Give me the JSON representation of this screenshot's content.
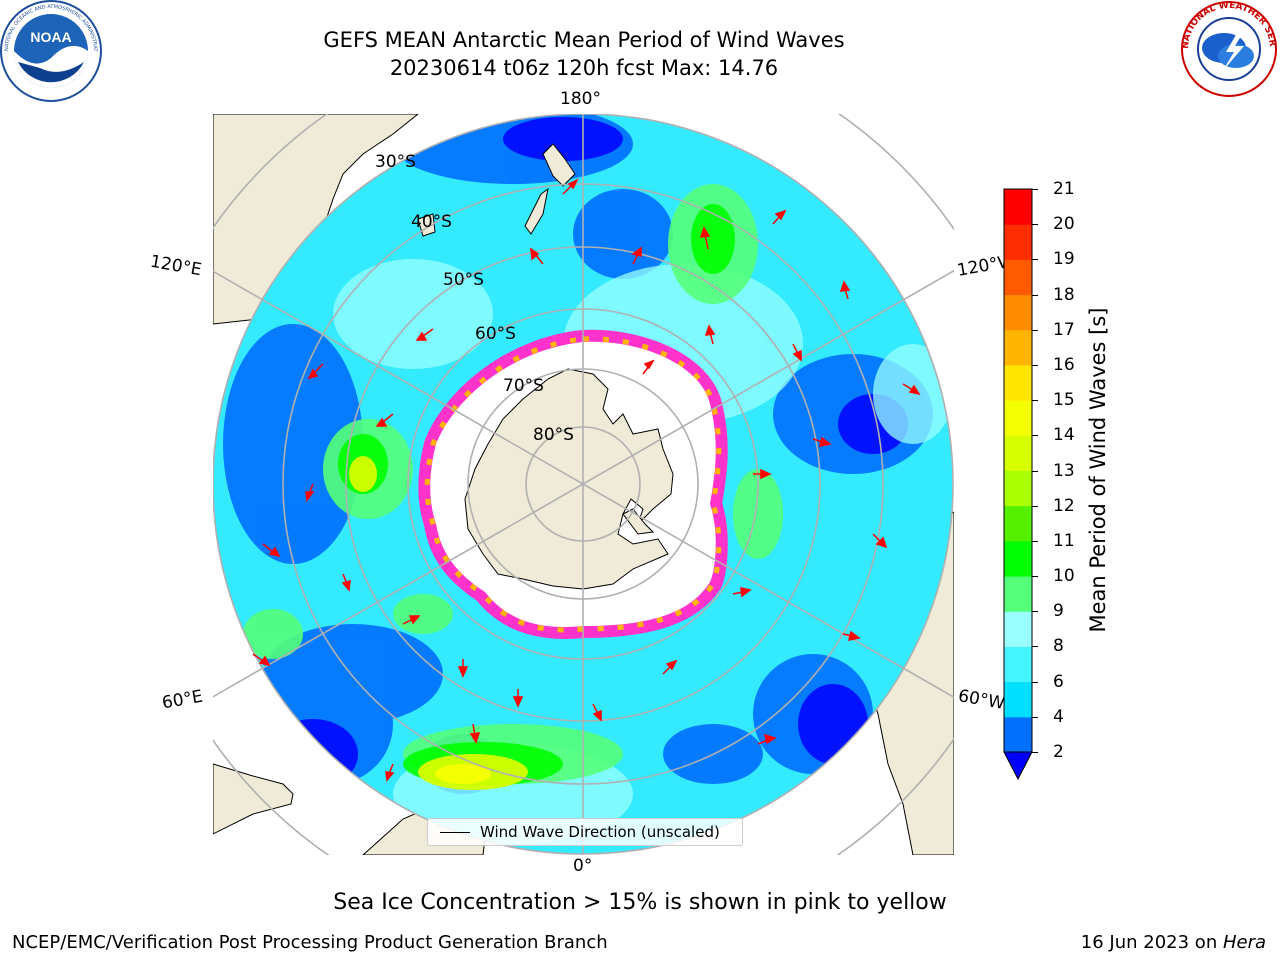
{
  "header": {
    "title_line1": "GEFS MEAN Antarctic Mean Period of Wind Waves",
    "title_line2": "20230614 t06z 120h fcst   Max: 14.76"
  },
  "logos": {
    "left": {
      "name": "noaa-logo",
      "text": "NOAA",
      "ring_text": "NATIONAL OCEANIC AND ATMOSPHERIC ADMINISTRATION · U.S. DEPARTMENT OF COMMERCE"
    },
    "right": {
      "name": "nws-logo",
      "ring_text": "NATIONAL WEATHER SERVICE"
    }
  },
  "map": {
    "projection": "south-polar-stereographic",
    "meridian_labels": {
      "top": "180°",
      "bottom": "0°",
      "left_upper": "120°E",
      "left_lower": "60°E",
      "right_upper": "120°W",
      "right_lower": "60°W"
    },
    "latitude_labels": [
      "30°S",
      "40°S",
      "50°S",
      "60°S",
      "70°S",
      "80°S"
    ],
    "colors": {
      "land": "#efebd8",
      "ice": "#ffffff",
      "ocean_base": "#33eaff",
      "grid": "#b0b0b0",
      "arrow": "#ff0000",
      "sea_ice_edge": "#ff33cc"
    }
  },
  "legend": {
    "label": "Wind Wave Direction (unscaled)"
  },
  "colorbar": {
    "label": "Mean Period of Wind Waves [s]",
    "ticks": [
      "2",
      "4",
      "6",
      "8",
      "9",
      "10",
      "11",
      "12",
      "13",
      "14",
      "15",
      "16",
      "17",
      "18",
      "19",
      "20",
      "21"
    ],
    "colors": [
      "#0070ff",
      "#00dfff",
      "#44f5ff",
      "#99ffff",
      "#55ff7a",
      "#00ff00",
      "#55f000",
      "#aaff00",
      "#d6ff00",
      "#f4ff00",
      "#ffe600",
      "#ffb400",
      "#ff8c00",
      "#ff5a00",
      "#ff2d00",
      "#ff0000"
    ],
    "under_color": "#0000ff"
  },
  "footer": {
    "note": "Sea Ice Concentration > 15% is shown in pink to yellow",
    "credit": "NCEP/EMC/Verification Post Processing Product Generation Branch",
    "date": "16 Jun 2023 on ",
    "machine": "Hera"
  }
}
